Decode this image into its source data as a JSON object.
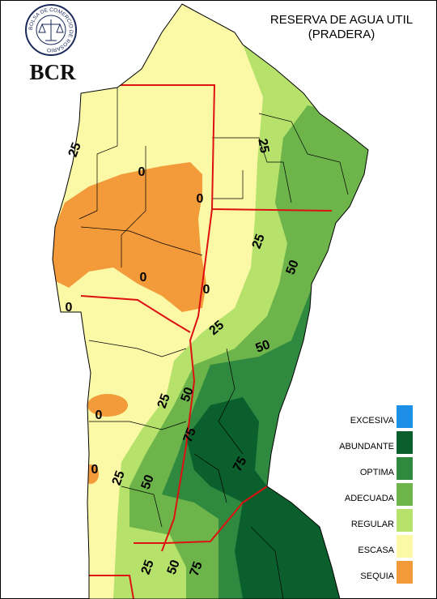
{
  "logo": {
    "ring_text": "BOLSA DE COMERCIO DE ROSARIO",
    "initials": "BCR"
  },
  "title": [
    "RESERVA DE AGUA UTIL",
    "(PRADERA)"
  ],
  "legend": [
    {
      "label": "EXCESIVA",
      "color": "#1e8fe6"
    },
    {
      "label": "ABUNDANTE",
      "color": "#0b5f2c"
    },
    {
      "label": "OPTIMA",
      "color": "#2f8a3f"
    },
    {
      "label": "ADECUADA",
      "color": "#6db54b"
    },
    {
      "label": "REGULAR",
      "color": "#b6e26c"
    },
    {
      "label": "ESCASA",
      "color": "#fbf8a6"
    },
    {
      "label": "SEQUIA",
      "color": "#f39b3a"
    }
  ],
  "contour_labels": [
    "25",
    "0",
    "0",
    "25",
    "25",
    "50",
    "0",
    "0",
    "0",
    "25",
    "50",
    "50",
    "25",
    "0",
    "75",
    "75",
    "0",
    "25",
    "50",
    "25",
    "50",
    "75"
  ]
}
